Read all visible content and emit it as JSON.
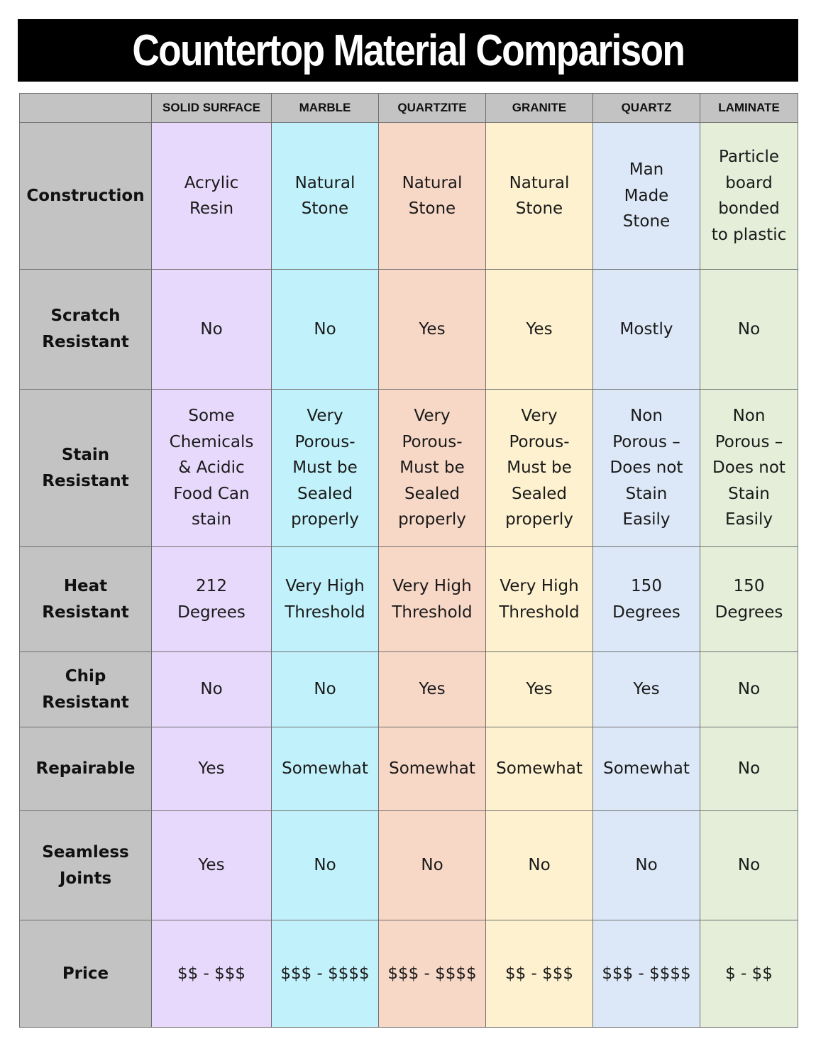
{
  "title": "Countertop Material Comparison",
  "colors": {
    "title_bg": "#000000",
    "title_fg": "#ffffff",
    "header_bg": "#c3c3c3",
    "column_bg": [
      "#e6d9fb",
      "#c1f1fa",
      "#f7d7c6",
      "#fdf1cf",
      "#dce8f7",
      "#e4eed9"
    ]
  },
  "columns": [
    "SOLID SURFACE",
    "MARBLE",
    "QUARTZITE",
    "GRANITE",
    "QUARTZ",
    "LAMINATE"
  ],
  "rows": [
    {
      "label": "Construction",
      "values": [
        "Acrylic\nResin",
        "Natural\nStone",
        "Natural\nStone",
        "Natural\nStone",
        "Man\nMade\nStone",
        "Particle\nboard\nbonded\nto plastic"
      ]
    },
    {
      "label": "Scratch\nResistant",
      "values": [
        "No",
        "No",
        "Yes",
        "Yes",
        "Mostly",
        "No"
      ]
    },
    {
      "label": "Stain\nResistant",
      "values": [
        "Some\nChemicals\n& Acidic\nFood Can\nstain",
        "Very\nPorous-\nMust be\nSealed\nproperly",
        "Very\nPorous-\nMust be\nSealed\nproperly",
        "Very\nPorous-\nMust be\nSealed\nproperly",
        "Non\nPorous –\nDoes not\nStain\nEasily",
        "Non\nPorous –\nDoes not\nStain\nEasily"
      ]
    },
    {
      "label": "Heat\nResistant",
      "values": [
        "212\nDegrees",
        "Very High\nThreshold",
        "Very High\nThreshold",
        "Very High\nThreshold",
        "150\nDegrees",
        "150\nDegrees"
      ]
    },
    {
      "label": "Chip\nResistant",
      "values": [
        "No",
        "No",
        "Yes",
        "Yes",
        "Yes",
        "No"
      ]
    },
    {
      "label": "Repairable",
      "values": [
        "Yes",
        "Somewhat",
        "Somewhat",
        "Somewhat",
        "Somewhat",
        "No"
      ]
    },
    {
      "label": "Seamless\nJoints",
      "values": [
        "Yes",
        "No",
        "No",
        "No",
        "No",
        "No"
      ]
    },
    {
      "label": "Price",
      "values": [
        "$$ - $$$",
        "$$$ - $$$$",
        "$$$ - $$$$",
        "$$ - $$$",
        "$$$ - $$$$",
        "$ - $$"
      ]
    }
  ]
}
